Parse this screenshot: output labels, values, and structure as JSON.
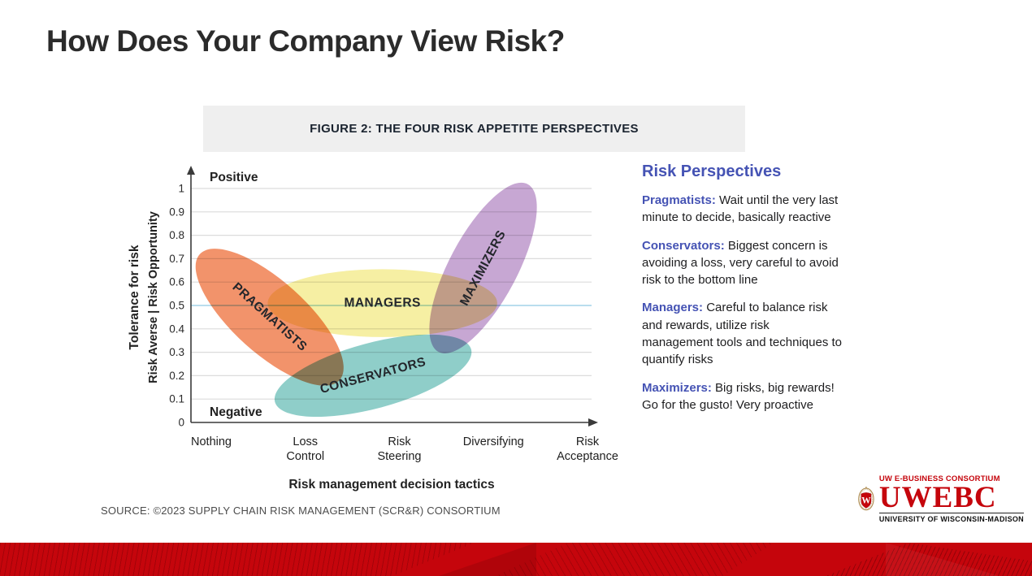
{
  "slide": {
    "title": "How Does Your Company View Risk?",
    "source": "SOURCE: ©2023 SUPPLY CHAIN RISK MANAGEMENT (SCR&R) CONSORTIUM"
  },
  "figure": {
    "banner": "FIGURE 2: THE FOUR RISK APPETITE PERSPECTIVES"
  },
  "chart_data": {
    "type": "scatter",
    "title": "FIGURE 2: THE FOUR RISK APPETITE PERSPECTIVES",
    "xlabel": "Risk management decision tactics",
    "ylabel": "Tolerance for risk",
    "ylabel2": "Risk Averse | Risk Opportunity",
    "x_categories": [
      "Nothing",
      "Loss Control",
      "Risk Steering",
      "Diversifying",
      "Risk Acceptance"
    ],
    "x_category_lines": [
      [
        "Nothing"
      ],
      [
        "Loss",
        "Control"
      ],
      [
        "Risk",
        "Steering"
      ],
      [
        "Diversifying"
      ],
      [
        "Risk",
        "Acceptance"
      ]
    ],
    "y_ticks": [
      "0",
      "0.1",
      "0.2",
      "0.3",
      "0.4",
      "0.5",
      "0.6",
      "0.7",
      "0.8",
      "0.9",
      "1"
    ],
    "ylim": [
      0,
      1
    ],
    "y_top_label": "Positive",
    "y_bottom_label": "Negative",
    "grid": true,
    "highlight_gridline": 0.5,
    "gridline_color": "#dcdcdc",
    "highlight_color": "#8fc9e4",
    "regions": [
      {
        "label": "PRAGMATISTS",
        "color": "#F2936B",
        "cx": 0.62,
        "cy": 0.45,
        "rx": 1.0,
        "ry": 0.155,
        "angle": 42,
        "label_angle": 42
      },
      {
        "label": "MANAGERS",
        "color": "#F6EFA3",
        "cx": 1.82,
        "cy": 0.51,
        "rx": 1.22,
        "ry": 0.145,
        "angle": 0,
        "label_angle": 0
      },
      {
        "label": "CONSERVATORS",
        "color": "#8FCEC9",
        "cx": 1.72,
        "cy": 0.2,
        "rx": 1.08,
        "ry": 0.14,
        "angle": -15,
        "label_angle": -15
      },
      {
        "label": "MAXIMIZERS",
        "color": "#C7A7D3",
        "cx": 2.89,
        "cy": 0.66,
        "rx": 1.01,
        "ry": 0.145,
        "angle": -62,
        "label_angle": -62
      }
    ]
  },
  "panel": {
    "heading": "Risk Perspectives",
    "accent_color": "#4553B4",
    "items": [
      {
        "term": "Pragmatists:",
        "desc": "Wait until the very last minute to decide, basically reactive"
      },
      {
        "term": "Conservators:",
        "desc": "Biggest concern is avoiding a loss, very careful to avoid risk to the bottom line"
      },
      {
        "term": "Managers:",
        "desc": "Careful to balance risk and rewards, utilize risk management tools and techniques to quantify risks"
      },
      {
        "term": "Maximizers:",
        "desc": "Big risks, big rewards! Go for the gusto! Very proactive"
      }
    ]
  },
  "logo": {
    "line1": "UW E-BUSINESS CONSORTIUM",
    "name": "UWEBC",
    "line2": "UNIVERSITY OF WISCONSIN-MADISON",
    "crest_letter": "W",
    "red": "#C5050C"
  }
}
